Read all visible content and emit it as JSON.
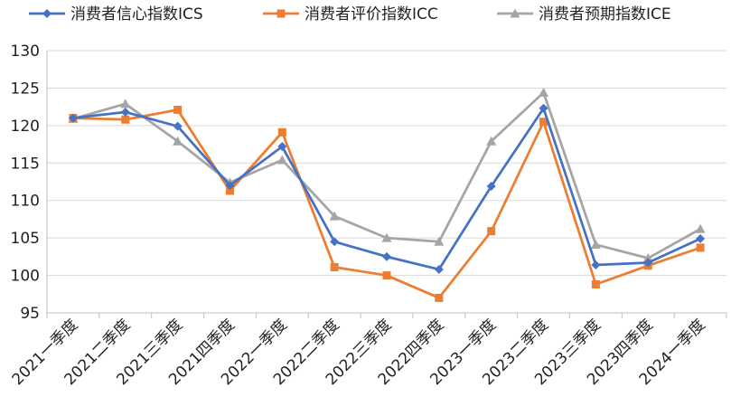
{
  "chart_data": {
    "type": "line",
    "categories": [
      "2021一季度",
      "2021二季度",
      "2021三季度",
      "2021四季度",
      "2022一季度",
      "2022二季度",
      "2022三季度",
      "2022四季度",
      "2023一季度",
      "2023二季度",
      "2023三季度",
      "2023四季度",
      "2024一季度"
    ],
    "series": [
      {
        "name": "消费者信心指数ICS",
        "color": "#4472C4",
        "marker": "diamond",
        "values": [
          121.0,
          121.8,
          119.9,
          112.0,
          117.2,
          104.5,
          102.5,
          100.8,
          111.9,
          122.3,
          101.4,
          101.7,
          104.9
        ]
      },
      {
        "name": "消费者评价指数ICC",
        "color": "#ED7D31",
        "marker": "square",
        "values": [
          121.0,
          120.8,
          122.1,
          111.3,
          119.1,
          101.1,
          100.0,
          97.0,
          105.9,
          120.5,
          98.8,
          101.3,
          103.7
        ]
      },
      {
        "name": "消费者预期指数ICE",
        "color": "#A5A5A5",
        "marker": "triangle",
        "values": [
          120.9,
          122.9,
          117.9,
          112.4,
          115.4,
          107.9,
          105.0,
          104.5,
          117.9,
          124.4,
          104.1,
          102.3,
          106.2
        ]
      }
    ],
    "yticks": [
      "95",
      "100",
      "105",
      "110",
      "115",
      "120",
      "125",
      "130"
    ],
    "ylim": [
      95,
      130
    ],
    "legend": "top",
    "grid": true
  }
}
